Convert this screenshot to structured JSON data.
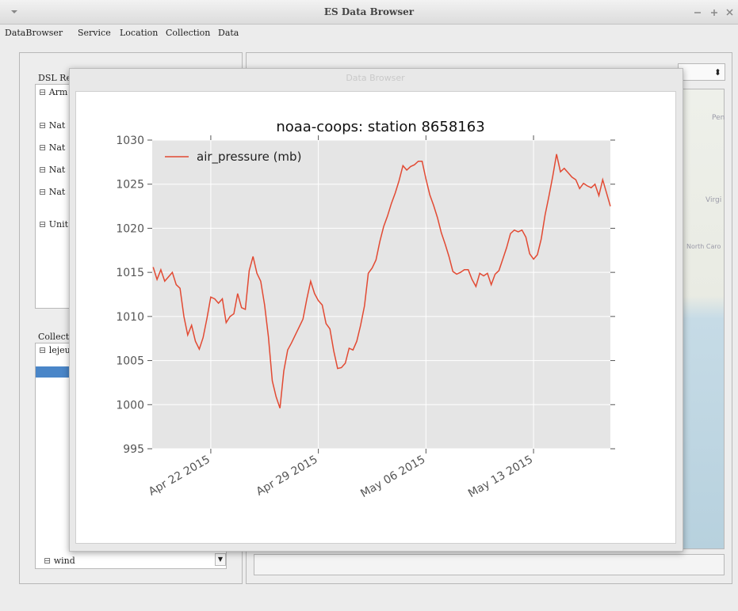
{
  "window": {
    "title": "ES Data Browser"
  },
  "menu": [
    "DataBrowser",
    "Service",
    "Location",
    "Collection",
    "Data"
  ],
  "left_panel": {
    "dsl_label": "DSL Re",
    "dsl_items": [
      "Arm",
      "Nat",
      "Nat",
      "Nat",
      "Nat",
      "Unit"
    ],
    "collection_label": "Collecti",
    "collection_items": [
      "lejeu",
      "wind"
    ]
  },
  "map": {
    "labels": [
      "Pen",
      "Virgi",
      "North Caro"
    ]
  },
  "dialog": {
    "title": "Data Browser"
  },
  "chart_data": {
    "type": "line",
    "title": "noaa-coops: station 8658163",
    "x": [
      "2015-04-18T06:00",
      "2015-04-18T12:00",
      "2015-04-18T18:00",
      "2015-04-19T00:00",
      "2015-04-19T06:00",
      "2015-04-19T12:00",
      "2015-04-19T18:00",
      "2015-04-20T00:00",
      "2015-04-20T06:00",
      "2015-04-20T12:00",
      "2015-04-20T18:00",
      "2015-04-21T00:00",
      "2015-04-21T06:00",
      "2015-04-21T12:00",
      "2015-04-21T18:00",
      "2015-04-22T00:00",
      "2015-04-22T06:00",
      "2015-04-22T12:00",
      "2015-04-22T18:00",
      "2015-04-23T00:00",
      "2015-04-23T06:00",
      "2015-04-23T12:00",
      "2015-04-23T18:00",
      "2015-04-24T00:00",
      "2015-04-24T06:00",
      "2015-04-24T12:00",
      "2015-04-24T18:00",
      "2015-04-25T00:00",
      "2015-04-25T06:00",
      "2015-04-25T12:00",
      "2015-04-25T18:00",
      "2015-04-26T00:00",
      "2015-04-26T06:00",
      "2015-04-26T12:00",
      "2015-04-26T18:00",
      "2015-04-27T00:00",
      "2015-04-27T06:00",
      "2015-04-27T12:00",
      "2015-04-27T18:00",
      "2015-04-28T00:00",
      "2015-04-28T06:00",
      "2015-04-28T12:00",
      "2015-04-28T18:00",
      "2015-04-29T00:00",
      "2015-04-29T06:00",
      "2015-04-29T12:00",
      "2015-04-29T18:00",
      "2015-04-30T00:00",
      "2015-04-30T06:00",
      "2015-04-30T12:00",
      "2015-04-30T18:00",
      "2015-05-01T00:00",
      "2015-05-01T06:00",
      "2015-05-01T12:00",
      "2015-05-01T18:00",
      "2015-05-02T00:00",
      "2015-05-02T06:00",
      "2015-05-02T12:00",
      "2015-05-02T18:00",
      "2015-05-03T00:00",
      "2015-05-03T06:00",
      "2015-05-03T12:00",
      "2015-05-03T18:00",
      "2015-05-04T00:00",
      "2015-05-04T06:00",
      "2015-05-04T12:00",
      "2015-05-04T18:00",
      "2015-05-05T00:00",
      "2015-05-05T06:00",
      "2015-05-05T12:00",
      "2015-05-05T18:00",
      "2015-05-06T00:00",
      "2015-05-06T06:00",
      "2015-05-06T12:00",
      "2015-05-06T18:00",
      "2015-05-07T00:00",
      "2015-05-07T06:00",
      "2015-05-07T12:00",
      "2015-05-07T18:00",
      "2015-05-08T00:00",
      "2015-05-08T06:00",
      "2015-05-08T12:00",
      "2015-05-08T18:00",
      "2015-05-09T00:00",
      "2015-05-09T06:00",
      "2015-05-09T12:00",
      "2015-05-09T18:00",
      "2015-05-10T00:00",
      "2015-05-10T06:00",
      "2015-05-10T12:00",
      "2015-05-10T18:00",
      "2015-05-11T00:00",
      "2015-05-11T06:00",
      "2015-05-11T12:00",
      "2015-05-11T18:00",
      "2015-05-12T00:00",
      "2015-05-12T06:00",
      "2015-05-12T12:00",
      "2015-05-12T18:00",
      "2015-05-13T00:00",
      "2015-05-13T06:00",
      "2015-05-13T12:00",
      "2015-05-13T18:00",
      "2015-05-14T00:00",
      "2015-05-14T06:00",
      "2015-05-14T12:00",
      "2015-05-14T18:00",
      "2015-05-15T00:00",
      "2015-05-15T06:00",
      "2015-05-15T12:00",
      "2015-05-15T18:00",
      "2015-05-16T00:00",
      "2015-05-16T06:00",
      "2015-05-16T12:00",
      "2015-05-16T18:00",
      "2015-05-17T00:00",
      "2015-05-17T06:00",
      "2015-05-17T12:00",
      "2015-05-17T18:00",
      "2015-05-18T00:00"
    ],
    "series": [
      {
        "name": "air_pressure (mb)",
        "color": "#e24a33",
        "values": [
          1015.6,
          1014.2,
          1015.3,
          1014.0,
          1014.5,
          1015.0,
          1013.6,
          1013.2,
          1010.0,
          1007.9,
          1009.0,
          1007.2,
          1006.3,
          1007.6,
          1009.8,
          1012.2,
          1012.0,
          1011.5,
          1012.0,
          1009.3,
          1010.0,
          1010.3,
          1012.6,
          1011.0,
          1010.8,
          1015.2,
          1016.8,
          1014.9,
          1014.0,
          1011.3,
          1007.7,
          1002.7,
          1000.9,
          999.6,
          1003.8,
          1006.2,
          1007.0,
          1007.9,
          1008.8,
          1009.7,
          1012.0,
          1014.0,
          1012.6,
          1011.8,
          1011.3,
          1009.2,
          1008.6,
          1006.1,
          1004.1,
          1004.2,
          1004.7,
          1006.4,
          1006.2,
          1007.2,
          1009.0,
          1011.2,
          1014.9,
          1015.5,
          1016.4,
          1018.5,
          1020.2,
          1021.4,
          1022.8,
          1024.0,
          1025.4,
          1027.1,
          1026.6,
          1027.0,
          1027.2,
          1027.6,
          1027.6,
          1025.6,
          1023.8,
          1022.6,
          1021.2,
          1019.5,
          1018.2,
          1016.8,
          1015.1,
          1014.8,
          1015.0,
          1015.3,
          1015.3,
          1014.2,
          1013.4,
          1014.9,
          1014.6,
          1014.9,
          1013.6,
          1014.8,
          1015.2,
          1016.5,
          1017.8,
          1019.4,
          1019.8,
          1019.6,
          1019.8,
          1019.0,
          1017.1,
          1016.5,
          1017.0,
          1018.8,
          1021.5,
          1023.6,
          1025.9,
          1028.4,
          1026.4,
          1026.8,
          1026.3,
          1025.8,
          1025.5,
          1024.5,
          1025.1,
          1024.8,
          1024.6,
          1025.0,
          1023.7,
          1025.5,
          1024.0,
          1022.5
        ]
      }
    ],
    "xlim": [
      "2015-04-18T04:30",
      "2015-05-18T00:00"
    ],
    "xticks": [
      {
        "value": "2015-04-22T00:00",
        "label": "Apr 22 2015"
      },
      {
        "value": "2015-04-29T00:00",
        "label": "Apr 29 2015"
      },
      {
        "value": "2015-05-06T00:00",
        "label": "May 06 2015"
      },
      {
        "value": "2015-05-13T00:00",
        "label": "May 13 2015"
      }
    ],
    "ylim": [
      995,
      1030
    ],
    "yticks": [
      995,
      1000,
      1005,
      1010,
      1015,
      1020,
      1025,
      1030
    ],
    "grid": true,
    "legend": "upper-left"
  }
}
